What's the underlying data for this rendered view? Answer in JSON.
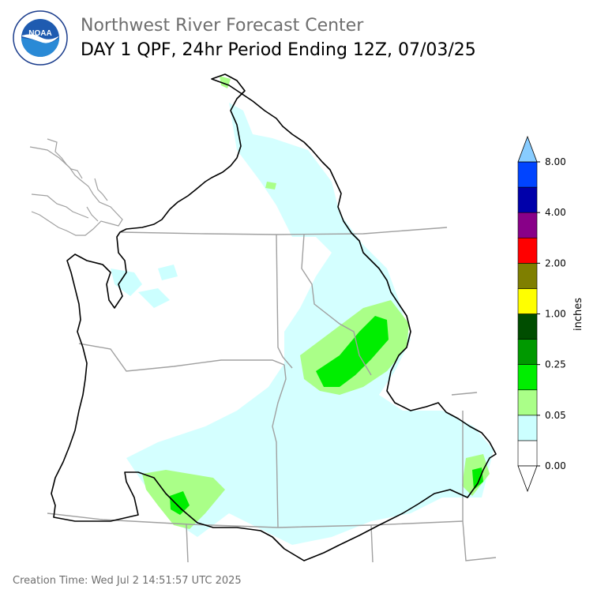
{
  "header": {
    "agency": "Northwest River Forecast Center",
    "product": "DAY 1 QPF, 24hr Period Ending 12Z, 07/03/25",
    "logo_text": "NOAA"
  },
  "legend": {
    "unit_label": "inches",
    "tick_labels": [
      "8.00",
      "4.00",
      "2.00",
      "1.00",
      "0.25",
      "0.05",
      "0.00"
    ],
    "colors": [
      "#ffffff",
      "#ccffff",
      "#aaff88",
      "#00ee00",
      "#009900",
      "#004d00",
      "#ffff00",
      "#7f7f00",
      "#ff0000",
      "#880088",
      "#0000aa",
      "#0044ff",
      "#88ccff"
    ]
  },
  "footer": {
    "creation_time": "Creation Time: Wed Jul 2 14:51:57 UTC 2025"
  },
  "colors": {
    "basin_outline": "#000000",
    "state_lines": "#a0a0a0",
    "title_gray": "#6e6e6e"
  }
}
